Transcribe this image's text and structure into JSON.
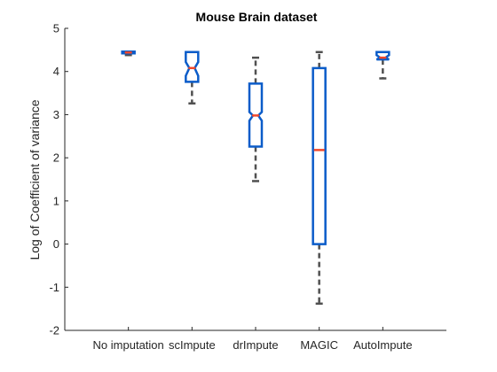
{
  "chart_data": {
    "type": "box",
    "title": "Mouse Brain dataset",
    "xlabel": "",
    "ylabel": "Log of Coefficient of variance",
    "ylim": [
      -2,
      5
    ],
    "yticks": [
      -2,
      -1,
      0,
      1,
      2,
      3,
      4,
      5
    ],
    "grid": false,
    "categories": [
      "No imputation",
      "scImpute",
      "drImpute",
      "MAGIC",
      "AutoImpute"
    ],
    "boxes": [
      {
        "whisker_low": 4.38,
        "q1": 4.42,
        "median": 4.44,
        "q3": 4.46,
        "whisker_high": 4.46,
        "notch_low": 4.43,
        "notch_high": 4.45
      },
      {
        "whisker_low": 3.26,
        "q1": 3.76,
        "median": 4.08,
        "q3": 4.45,
        "whisker_high": 4.45,
        "notch_low": 3.9,
        "notch_high": 4.22
      },
      {
        "whisker_low": 1.46,
        "q1": 2.26,
        "median": 2.98,
        "q3": 3.72,
        "whisker_high": 4.32,
        "notch_low": 2.86,
        "notch_high": 3.06
      },
      {
        "whisker_low": -1.38,
        "q1": 0.0,
        "median": 2.18,
        "q3": 4.08,
        "whisker_high": 4.45,
        "notch_low": 2.18,
        "notch_high": 2.18
      },
      {
        "whisker_low": 3.84,
        "q1": 4.28,
        "median": 4.32,
        "q3": 4.45,
        "whisker_high": 4.45,
        "notch_low": 4.28,
        "notch_high": 4.38
      }
    ],
    "colors": {
      "box": "#0b5cc9",
      "median": "#f2482a",
      "whisker": "#505050",
      "axis": "#262626"
    }
  }
}
